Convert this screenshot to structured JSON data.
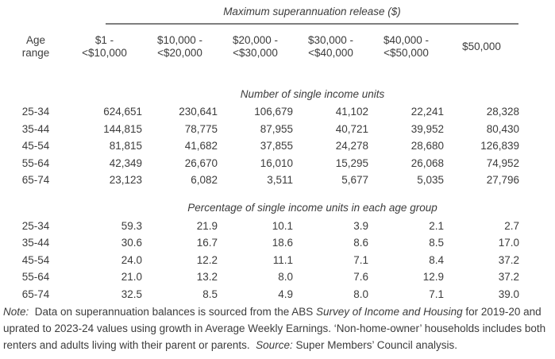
{
  "page": {
    "background": "#ffffff",
    "text_color": "#3c3c3c",
    "rule_color": "#7f7f7f"
  },
  "table": {
    "title": "Maximum superannuation release ($)",
    "row_header": {
      "line1": "Age",
      "line2": "range"
    },
    "column_headers": [
      {
        "line1": "$1 -",
        "line2": "<$10,000"
      },
      {
        "line1": "$10,000 -",
        "line2": "<$20,000"
      },
      {
        "line1": "$20,000 -",
        "line2": "<$30,000"
      },
      {
        "line1": "$30,000 -",
        "line2": "<$40,000"
      },
      {
        "line1": "$40,000 -",
        "line2": "<$50,000"
      },
      {
        "line1": "$50,000",
        "line2": ""
      }
    ],
    "sections": [
      {
        "title": "Number of single income units",
        "rows": [
          {
            "age": "25-34",
            "values": [
              "624,651",
              "230,641",
              "106,679",
              "41,102",
              "22,241",
              "28,328"
            ]
          },
          {
            "age": "35-44",
            "values": [
              "144,815",
              "78,775",
              "87,955",
              "40,721",
              "39,952",
              "80,430"
            ]
          },
          {
            "age": "45-54",
            "values": [
              "81,815",
              "41,682",
              "37,855",
              "24,278",
              "28,680",
              "126,839"
            ]
          },
          {
            "age": "55-64",
            "values": [
              "42,349",
              "26,670",
              "16,010",
              "15,295",
              "26,068",
              "74,952"
            ]
          },
          {
            "age": "65-74",
            "values": [
              "23,123",
              "6,082",
              "3,511",
              "5,677",
              "5,035",
              "27,796"
            ]
          }
        ]
      },
      {
        "title": "Percentage of single income units in each age group",
        "rows": [
          {
            "age": "25-34",
            "values": [
              "59.3",
              "21.9",
              "10.1",
              "3.9",
              "2.1",
              "2.7"
            ]
          },
          {
            "age": "35-44",
            "values": [
              "30.6",
              "16.7",
              "18.6",
              "8.6",
              "8.5",
              "17.0"
            ]
          },
          {
            "age": "45-54",
            "values": [
              "24.0",
              "12.2",
              "11.1",
              "7.1",
              "8.4",
              "37.2"
            ]
          },
          {
            "age": "55-64",
            "values": [
              "21.0",
              "13.2",
              "8.0",
              "7.6",
              "12.9",
              "37.2"
            ]
          },
          {
            "age": "65-74",
            "values": [
              "32.5",
              "8.5",
              "4.9",
              "8.0",
              "7.1",
              "39.0"
            ]
          }
        ]
      }
    ]
  },
  "note": {
    "segments": [
      {
        "text": "Note:",
        "italic": true
      },
      {
        "text": "  Data on superannuation balances is sourced from the ABS ",
        "italic": false
      },
      {
        "text": "Survey of Income and Housing",
        "italic": true
      },
      {
        "text": " for 2019-20 and uprated to 2023-24 values using growth in Average Weekly Earnings. ‘Non-home-owner’ households includes both renters and adults living with their parent or parents.  ",
        "italic": false
      },
      {
        "text": "Source:",
        "italic": true
      },
      {
        "text": " Super Members’ Council analysis.",
        "italic": false
      }
    ]
  }
}
